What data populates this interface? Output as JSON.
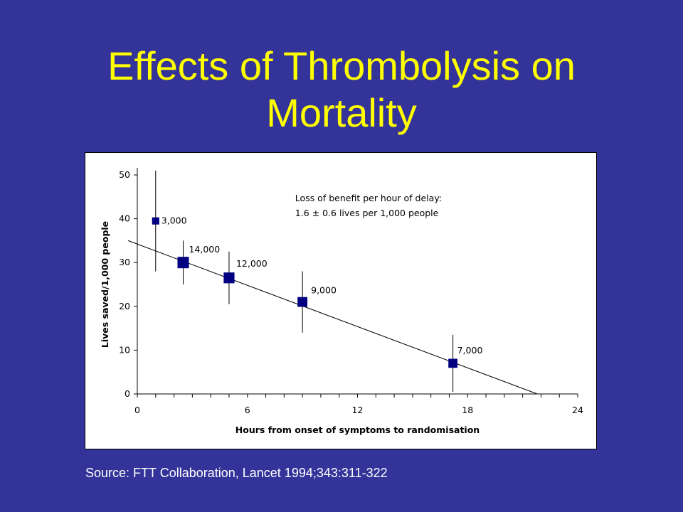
{
  "slide": {
    "title_line1": "Effects of Thrombolysis on",
    "title_line2": "Mortality",
    "source": "Source: FTT Collaboration, Lancet 1994;343:311-322"
  },
  "colors": {
    "background": "#333399",
    "title": "#ffff00",
    "marker": "#000080",
    "panel": "#ffffff"
  },
  "chart_data": {
    "type": "scatter",
    "title": "",
    "xlabel": "Hours from onset of symptoms to randomisation",
    "ylabel": "Lives saved/1,000 people",
    "xlim": [
      0,
      24
    ],
    "ylim": [
      0,
      50
    ],
    "xticks": [
      0,
      6,
      12,
      18,
      24
    ],
    "yticks": [
      0,
      10,
      20,
      30,
      40,
      50
    ],
    "x_minor_step": 1,
    "grid": false,
    "annotation": {
      "line1": "Loss of benefit per hour of delay:",
      "line2": "1.6 ± 0.6 lives per 1,000 people",
      "x": 8.6,
      "y": 44
    },
    "series": [
      {
        "points": [
          {
            "x": 1.0,
            "y": 39.5,
            "low": 28,
            "high": 51,
            "size": 3000,
            "label": "3,000"
          },
          {
            "x": 2.5,
            "y": 30.0,
            "low": 25,
            "high": 35,
            "size": 14000,
            "label": "14,000"
          },
          {
            "x": 5.0,
            "y": 26.5,
            "low": 20.5,
            "high": 32.5,
            "size": 12000,
            "label": "12,000"
          },
          {
            "x": 9.0,
            "y": 21.0,
            "low": 14,
            "high": 28,
            "size": 9000,
            "label": "9,000"
          },
          {
            "x": 17.2,
            "y": 7.0,
            "low": 0.5,
            "high": 13.5,
            "size": 7000,
            "label": "7,000"
          }
        ]
      }
    ],
    "trend_line": {
      "x": [
        -0.5,
        21.8
      ],
      "y": [
        35,
        0
      ]
    }
  }
}
